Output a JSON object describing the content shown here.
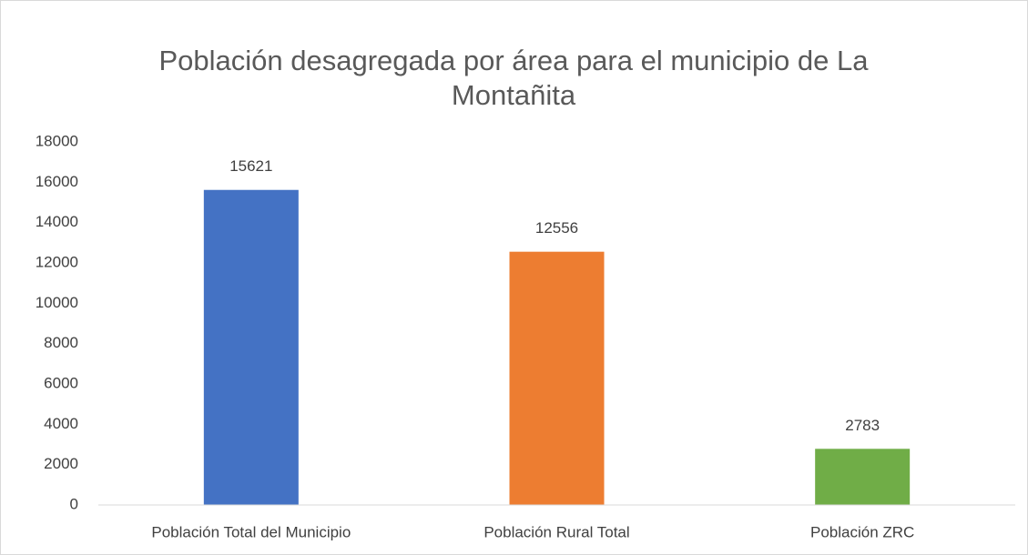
{
  "chart_data": {
    "type": "bar",
    "title": "Población desagregada por área para el municipio de La Montañita",
    "categories": [
      "Población Total del Municipio",
      "Población Rural Total",
      "Población ZRC"
    ],
    "values": [
      15621,
      12556,
      2783
    ],
    "colors": [
      "#4472c4",
      "#ed7d31",
      "#70ad47"
    ],
    "ylim": [
      0,
      18000
    ],
    "yticks": [
      0,
      2000,
      4000,
      6000,
      8000,
      10000,
      12000,
      14000,
      16000,
      18000
    ],
    "grid": false
  }
}
